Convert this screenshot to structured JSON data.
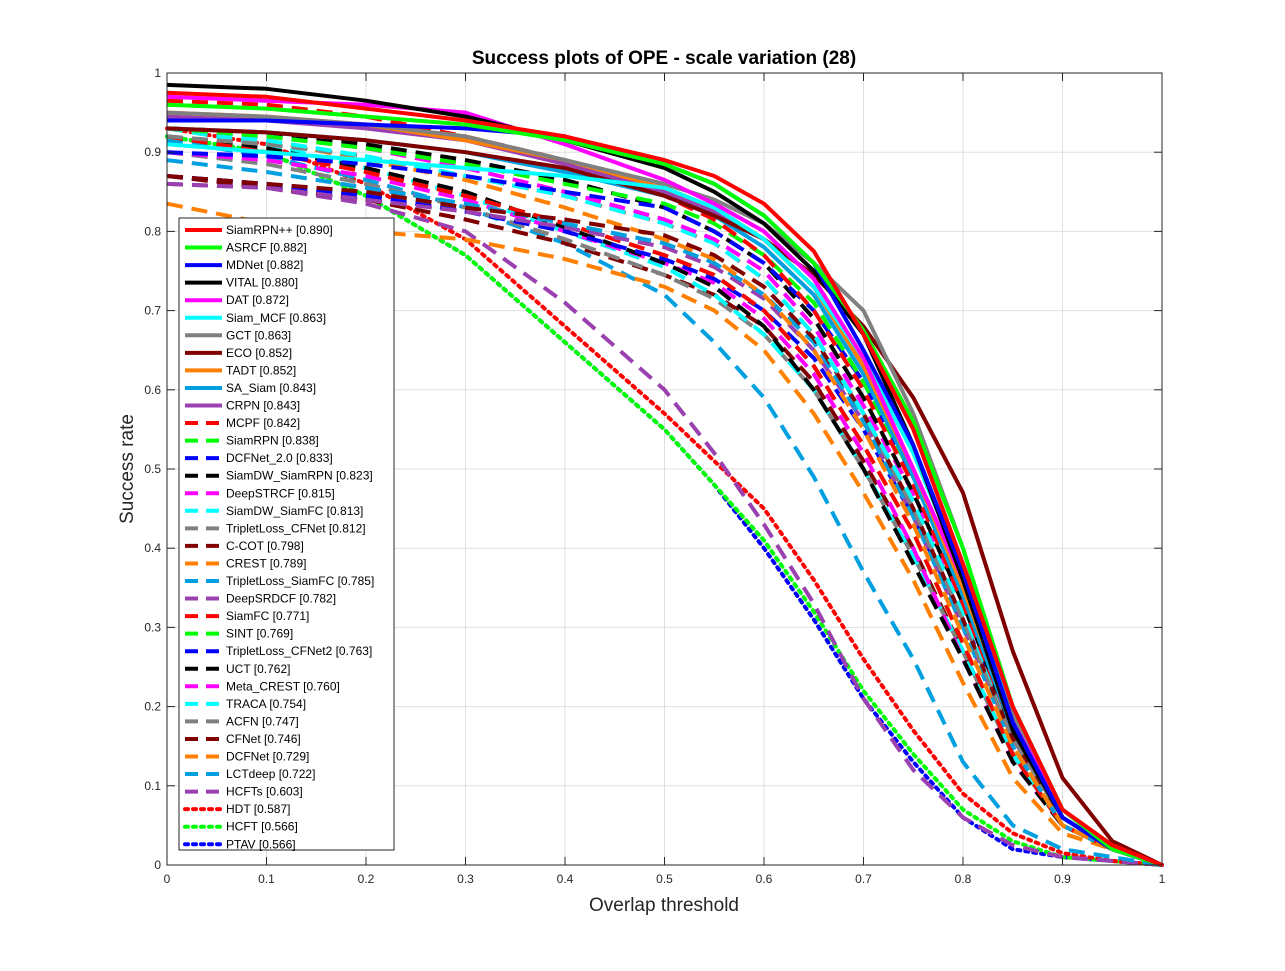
{
  "chart_data": {
    "type": "line",
    "title": "Success plots of OPE - scale variation (28)",
    "xlabel": "Overlap threshold",
    "ylabel": "Success rate",
    "xlim": [
      0,
      1
    ],
    "ylim": [
      0,
      1
    ],
    "grid": true,
    "legend_position": "bottom-left",
    "x_ticks": [
      "0",
      "0.1",
      "0.2",
      "0.3",
      "0.4",
      "0.5",
      "0.6",
      "0.7",
      "0.8",
      "0.9",
      "1"
    ],
    "y_ticks": [
      "0",
      "0.1",
      "0.2",
      "0.3",
      "0.4",
      "0.5",
      "0.6",
      "0.7",
      "0.8",
      "0.9",
      "1"
    ],
    "x": [
      0,
      0.1,
      0.2,
      0.3,
      0.4,
      0.5,
      0.55,
      0.6,
      0.65,
      0.7,
      0.75,
      0.8,
      0.85,
      0.9,
      0.95,
      1
    ],
    "series": [
      {
        "name": "SiamRPN++",
        "score": "0.890",
        "legend": "SiamRPN++ [0.890]",
        "color": "#ff0000",
        "style": "solid",
        "values": [
          0.975,
          0.97,
          0.955,
          0.94,
          0.92,
          0.89,
          0.87,
          0.835,
          0.775,
          0.67,
          0.55,
          0.38,
          0.2,
          0.07,
          0.025,
          0.0
        ]
      },
      {
        "name": "ASRCF",
        "score": "0.882",
        "legend": "ASRCF [0.882]",
        "color": "#00ff00",
        "style": "solid",
        "values": [
          0.96,
          0.955,
          0.945,
          0.935,
          0.915,
          0.885,
          0.86,
          0.82,
          0.76,
          0.675,
          0.56,
          0.4,
          0.2,
          0.07,
          0.02,
          0.0
        ]
      },
      {
        "name": "MDNet",
        "score": "0.882",
        "legend": "MDNet [0.882]",
        "color": "#0000ff",
        "style": "solid",
        "values": [
          0.94,
          0.94,
          0.935,
          0.93,
          0.92,
          0.885,
          0.86,
          0.82,
          0.76,
          0.65,
          0.53,
          0.37,
          0.18,
          0.06,
          0.02,
          0.0
        ]
      },
      {
        "name": "VITAL",
        "score": "0.880",
        "legend": "VITAL [0.880]",
        "color": "#000000",
        "style": "solid",
        "values": [
          0.985,
          0.98,
          0.965,
          0.945,
          0.915,
          0.88,
          0.85,
          0.81,
          0.75,
          0.67,
          0.53,
          0.36,
          0.17,
          0.06,
          0.02,
          0.0
        ]
      },
      {
        "name": "DAT",
        "score": "0.872",
        "legend": "DAT [0.872]",
        "color": "#ff00ff",
        "style": "solid",
        "values": [
          0.97,
          0.965,
          0.96,
          0.95,
          0.91,
          0.865,
          0.835,
          0.8,
          0.74,
          0.64,
          0.5,
          0.36,
          0.18,
          0.07,
          0.02,
          0.0
        ]
      },
      {
        "name": "Siam_MCF",
        "score": "0.863",
        "legend": "Siam_MCF [0.863]",
        "color": "#00ffff",
        "style": "solid",
        "values": [
          0.91,
          0.9,
          0.89,
          0.88,
          0.87,
          0.855,
          0.83,
          0.79,
          0.73,
          0.64,
          0.52,
          0.37,
          0.2,
          0.07,
          0.02,
          0.0
        ]
      },
      {
        "name": "GCT",
        "score": "0.863",
        "legend": "GCT [0.863]",
        "color": "#808080",
        "style": "solid",
        "values": [
          0.95,
          0.945,
          0.935,
          0.92,
          0.89,
          0.86,
          0.84,
          0.81,
          0.76,
          0.7,
          0.57,
          0.4,
          0.19,
          0.06,
          0.02,
          0.0
        ]
      },
      {
        "name": "ECO",
        "score": "0.852",
        "legend": "ECO [0.852]",
        "color": "#800000",
        "style": "solid",
        "values": [
          0.93,
          0.925,
          0.915,
          0.9,
          0.88,
          0.845,
          0.82,
          0.79,
          0.745,
          0.68,
          0.59,
          0.47,
          0.27,
          0.11,
          0.03,
          0.0
        ]
      },
      {
        "name": "TADT",
        "score": "0.852",
        "legend": "TADT [0.852]",
        "color": "#ff8000",
        "style": "solid",
        "values": [
          0.95,
          0.945,
          0.935,
          0.915,
          0.89,
          0.855,
          0.83,
          0.79,
          0.73,
          0.63,
          0.5,
          0.35,
          0.18,
          0.06,
          0.02,
          0.0
        ]
      },
      {
        "name": "SA_Siam",
        "score": "0.843",
        "legend": "SA_Siam [0.843]",
        "color": "#00a0e0",
        "style": "solid",
        "values": [
          0.93,
          0.925,
          0.915,
          0.9,
          0.875,
          0.845,
          0.82,
          0.78,
          0.72,
          0.62,
          0.49,
          0.34,
          0.17,
          0.06,
          0.02,
          0.0
        ]
      },
      {
        "name": "CRPN",
        "score": "0.843",
        "legend": "CRPN [0.843]",
        "color": "#9b40b0",
        "style": "solid",
        "values": [
          0.945,
          0.94,
          0.93,
          0.915,
          0.885,
          0.85,
          0.825,
          0.79,
          0.73,
          0.63,
          0.5,
          0.35,
          0.18,
          0.06,
          0.02,
          0.0
        ]
      },
      {
        "name": "MCPF",
        "score": "0.842",
        "legend": "MCPF [0.842]",
        "color": "#ff0000",
        "style": "dashed",
        "values": [
          0.965,
          0.96,
          0.945,
          0.92,
          0.89,
          0.845,
          0.815,
          0.77,
          0.7,
          0.6,
          0.48,
          0.33,
          0.17,
          0.06,
          0.02,
          0.0
        ]
      },
      {
        "name": "SiamRPN",
        "score": "0.838",
        "legend": "SiamRPN [0.838]",
        "color": "#00ff00",
        "style": "dashed",
        "values": [
          0.93,
          0.92,
          0.905,
          0.885,
          0.86,
          0.835,
          0.81,
          0.77,
          0.71,
          0.61,
          0.49,
          0.34,
          0.17,
          0.06,
          0.02,
          0.0
        ]
      },
      {
        "name": "DCFNet_2.0",
        "score": "0.833",
        "legend": "DCFNet_2.0 [0.833]",
        "color": "#0000ff",
        "style": "dashed",
        "values": [
          0.9,
          0.895,
          0.885,
          0.87,
          0.85,
          0.83,
          0.8,
          0.76,
          0.7,
          0.61,
          0.49,
          0.35,
          0.18,
          0.06,
          0.02,
          0.0
        ]
      },
      {
        "name": "SiamDW_SiamRPN",
        "score": "0.823",
        "legend": "SiamDW_SiamRPN [0.823]",
        "color": "#000000",
        "style": "dashed",
        "values": [
          0.93,
          0.925,
          0.91,
          0.89,
          0.865,
          0.83,
          0.8,
          0.76,
          0.69,
          0.59,
          0.47,
          0.33,
          0.17,
          0.06,
          0.02,
          0.0
        ]
      },
      {
        "name": "DeepSTRCF",
        "score": "0.815",
        "legend": "DeepSTRCF [0.815]",
        "color": "#ff00ff",
        "style": "dashed",
        "values": [
          0.93,
          0.92,
          0.905,
          0.88,
          0.85,
          0.815,
          0.79,
          0.75,
          0.68,
          0.58,
          0.47,
          0.33,
          0.17,
          0.06,
          0.02,
          0.0
        ]
      },
      {
        "name": "SiamDW_SiamFC",
        "score": "0.813",
        "legend": "SiamDW_SiamFC [0.813]",
        "color": "#00ffff",
        "style": "dashed",
        "values": [
          0.93,
          0.915,
          0.895,
          0.87,
          0.845,
          0.81,
          0.785,
          0.74,
          0.67,
          0.57,
          0.46,
          0.32,
          0.17,
          0.06,
          0.02,
          0.0
        ]
      },
      {
        "name": "TripletLoss_CFNet",
        "score": "0.812",
        "legend": "TripletLoss_CFNet [0.812]",
        "color": "#808080",
        "style": "dashed",
        "values": [
          0.92,
          0.91,
          0.895,
          0.87,
          0.845,
          0.81,
          0.785,
          0.74,
          0.67,
          0.57,
          0.45,
          0.31,
          0.16,
          0.06,
          0.02,
          0.0
        ]
      },
      {
        "name": "C-COT",
        "score": "0.798",
        "legend": "C-COT [0.798]",
        "color": "#800000",
        "style": "dashed",
        "values": [
          0.87,
          0.86,
          0.85,
          0.83,
          0.815,
          0.795,
          0.77,
          0.73,
          0.665,
          0.57,
          0.45,
          0.31,
          0.16,
          0.06,
          0.02,
          0.0
        ]
      },
      {
        "name": "CREST",
        "score": "0.789",
        "legend": "CREST [0.789]",
        "color": "#ff8000",
        "style": "dashed",
        "values": [
          0.93,
          0.915,
          0.89,
          0.865,
          0.83,
          0.79,
          0.765,
          0.72,
          0.65,
          0.55,
          0.43,
          0.29,
          0.15,
          0.05,
          0.02,
          0.0
        ]
      },
      {
        "name": "TripletLoss_SiamFC",
        "score": "0.785",
        "legend": "TripletLoss_SiamFC [0.785]",
        "color": "#00a0e0",
        "style": "dashed",
        "values": [
          0.89,
          0.875,
          0.855,
          0.835,
          0.81,
          0.785,
          0.76,
          0.72,
          0.66,
          0.56,
          0.44,
          0.3,
          0.15,
          0.05,
          0.02,
          0.0
        ]
      },
      {
        "name": "DeepSRDCF",
        "score": "0.782",
        "legend": "DeepSRDCF [0.782]",
        "color": "#9b40b0",
        "style": "dashed",
        "values": [
          0.86,
          0.855,
          0.84,
          0.825,
          0.805,
          0.78,
          0.755,
          0.715,
          0.65,
          0.56,
          0.44,
          0.3,
          0.16,
          0.06,
          0.02,
          0.0
        ]
      },
      {
        "name": "SiamFC",
        "score": "0.771",
        "legend": "SiamFC [0.771]",
        "color": "#ff0000",
        "style": "dashed",
        "values": [
          0.92,
          0.9,
          0.875,
          0.845,
          0.81,
          0.77,
          0.745,
          0.7,
          0.63,
          0.53,
          0.42,
          0.28,
          0.14,
          0.05,
          0.02,
          0.0
        ]
      },
      {
        "name": "SINT",
        "score": "0.769",
        "legend": "SINT [0.769]",
        "color": "#00ff00",
        "style": "dashed",
        "values": [
          0.92,
          0.9,
          0.875,
          0.845,
          0.81,
          0.77,
          0.745,
          0.7,
          0.63,
          0.53,
          0.42,
          0.28,
          0.14,
          0.05,
          0.02,
          0.0
        ]
      },
      {
        "name": "TripletLoss_CFNet2",
        "score": "0.763",
        "legend": "TripletLoss_CFNet2 [0.763]",
        "color": "#0000ff",
        "style": "dashed",
        "values": [
          0.87,
          0.86,
          0.845,
          0.825,
          0.8,
          0.765,
          0.74,
          0.7,
          0.64,
          0.55,
          0.44,
          0.31,
          0.17,
          0.06,
          0.02,
          0.0
        ]
      },
      {
        "name": "UCT",
        "score": "0.762",
        "legend": "UCT [0.762]",
        "color": "#000000",
        "style": "dashed",
        "values": [
          0.92,
          0.905,
          0.88,
          0.85,
          0.805,
          0.76,
          0.73,
          0.68,
          0.6,
          0.5,
          0.38,
          0.26,
          0.13,
          0.05,
          0.02,
          0.0
        ]
      },
      {
        "name": "Meta_CREST",
        "score": "0.760",
        "legend": "Meta_CREST [0.760]",
        "color": "#ff00ff",
        "style": "dashed",
        "values": [
          0.9,
          0.89,
          0.87,
          0.84,
          0.8,
          0.76,
          0.735,
          0.69,
          0.62,
          0.52,
          0.4,
          0.26,
          0.13,
          0.05,
          0.02,
          0.0
        ]
      },
      {
        "name": "TRACA",
        "score": "0.754",
        "legend": "TRACA [0.754]",
        "color": "#00ffff",
        "style": "dashed",
        "values": [
          0.93,
          0.91,
          0.88,
          0.845,
          0.8,
          0.755,
          0.72,
          0.67,
          0.6,
          0.5,
          0.39,
          0.27,
          0.14,
          0.05,
          0.02,
          0.0
        ]
      },
      {
        "name": "ACFN",
        "score": "0.747",
        "legend": "ACFN [0.747]",
        "color": "#808080",
        "style": "dashed",
        "values": [
          0.9,
          0.885,
          0.86,
          0.83,
          0.79,
          0.745,
          0.715,
          0.67,
          0.6,
          0.5,
          0.39,
          0.27,
          0.14,
          0.05,
          0.02,
          0.0
        ]
      },
      {
        "name": "CFNet",
        "score": "0.746",
        "legend": "CFNet [0.746]",
        "color": "#800000",
        "style": "dashed",
        "values": [
          0.87,
          0.855,
          0.84,
          0.815,
          0.785,
          0.745,
          0.72,
          0.68,
          0.61,
          0.51,
          0.4,
          0.27,
          0.14,
          0.05,
          0.02,
          0.0
        ]
      },
      {
        "name": "DCFNet",
        "score": "0.729",
        "legend": "DCFNet [0.729]",
        "color": "#ff8000",
        "style": "dashed",
        "values": [
          0.835,
          0.81,
          0.8,
          0.79,
          0.765,
          0.73,
          0.7,
          0.65,
          0.57,
          0.47,
          0.36,
          0.23,
          0.11,
          0.04,
          0.02,
          0.0
        ]
      },
      {
        "name": "LCTdeep",
        "score": "0.722",
        "legend": "LCTdeep [0.722]",
        "color": "#00a0e0",
        "style": "dashed",
        "values": [
          0.915,
          0.895,
          0.865,
          0.83,
          0.785,
          0.72,
          0.66,
          0.59,
          0.49,
          0.37,
          0.26,
          0.13,
          0.05,
          0.02,
          0.01,
          0.0
        ]
      },
      {
        "name": "HCFTs",
        "score": "0.603",
        "legend": "HCFTs [0.603]",
        "color": "#9b40b0",
        "style": "dashed",
        "values": [
          0.86,
          0.855,
          0.835,
          0.8,
          0.71,
          0.6,
          0.52,
          0.43,
          0.33,
          0.21,
          0.12,
          0.06,
          0.025,
          0.01,
          0.005,
          0.0
        ]
      },
      {
        "name": "HDT",
        "score": "0.587",
        "legend": "HDT [0.587]",
        "color": "#ff0000",
        "style": "dotted",
        "values": [
          0.93,
          0.91,
          0.86,
          0.79,
          0.68,
          0.57,
          0.51,
          0.45,
          0.36,
          0.26,
          0.17,
          0.09,
          0.04,
          0.015,
          0.005,
          0.0
        ]
      },
      {
        "name": "HCFT",
        "score": "0.566",
        "legend": "HCFT [0.566]",
        "color": "#00ff00",
        "style": "dotted",
        "values": [
          0.92,
          0.9,
          0.845,
          0.77,
          0.66,
          0.55,
          0.48,
          0.41,
          0.32,
          0.22,
          0.14,
          0.07,
          0.03,
          0.01,
          0.005,
          0.0
        ]
      },
      {
        "name": "PTAV",
        "score": "0.566",
        "legend": "PTAV [0.566]",
        "color": "#0000ff",
        "style": "dotted",
        "values": [
          0.92,
          0.9,
          0.845,
          0.77,
          0.66,
          0.55,
          0.48,
          0.4,
          0.31,
          0.21,
          0.13,
          0.06,
          0.02,
          0.01,
          0.005,
          0.0
        ]
      }
    ]
  }
}
